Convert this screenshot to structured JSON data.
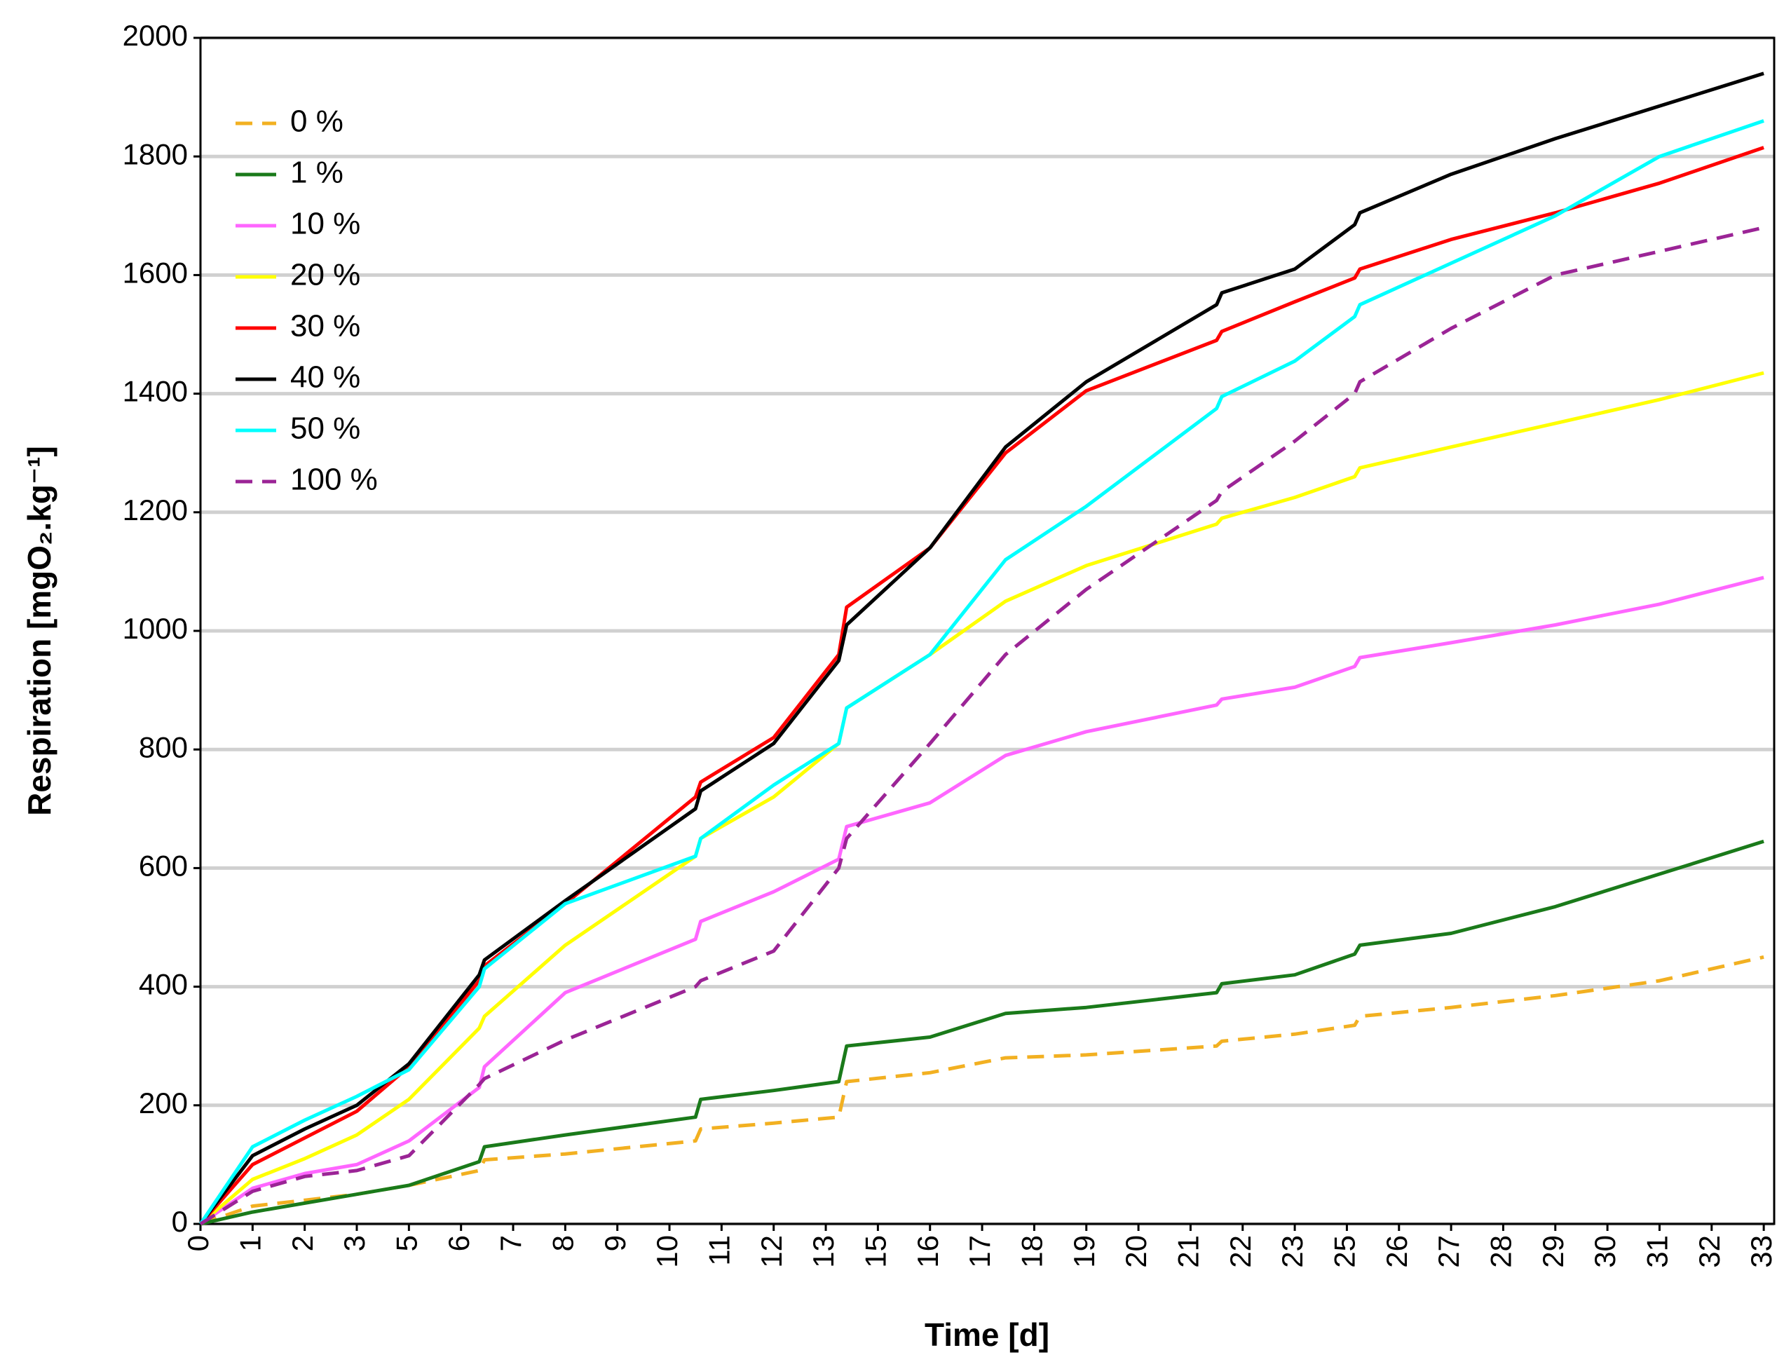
{
  "chart_data": {
    "type": "line",
    "xlabel": "Time [d]",
    "ylabel": "Respiration [mgO₂.kg⁻¹]",
    "x": [
      0,
      1,
      2,
      3,
      4,
      5.35,
      5.45,
      7,
      9.5,
      9.6,
      11,
      12.25,
      12.4,
      14,
      15.45,
      17,
      19.5,
      19.6,
      21,
      22.15,
      22.25,
      24,
      26,
      28,
      30
    ],
    "series": [
      {
        "name": "0 %",
        "color": "#f2b021",
        "dash": true,
        "values": [
          0,
          30,
          40,
          50,
          65,
          90,
          108,
          118,
          140,
          160,
          170,
          180,
          240,
          255,
          280,
          285,
          300,
          308,
          320,
          335,
          350,
          365,
          385,
          410,
          450
        ]
      },
      {
        "name": "1 %",
        "color": "#1a7a1a",
        "dash": false,
        "values": [
          0,
          20,
          35,
          50,
          65,
          105,
          130,
          150,
          180,
          210,
          225,
          240,
          300,
          315,
          355,
          365,
          390,
          405,
          420,
          455,
          470,
          490,
          535,
          590,
          645
        ]
      },
      {
        "name": "10 %",
        "color": "#ff66ff",
        "dash": false,
        "values": [
          0,
          60,
          85,
          100,
          140,
          230,
          265,
          390,
          480,
          510,
          560,
          615,
          670,
          710,
          790,
          830,
          875,
          885,
          905,
          940,
          955,
          980,
          1010,
          1045,
          1090
        ]
      },
      {
        "name": "20 %",
        "color": "#ffff00",
        "dash": false,
        "values": [
          0,
          75,
          110,
          150,
          210,
          330,
          350,
          470,
          620,
          650,
          720,
          810,
          870,
          960,
          1050,
          1110,
          1180,
          1190,
          1225,
          1260,
          1275,
          1310,
          1350,
          1390,
          1435
        ]
      },
      {
        "name": "30 %",
        "color": "#ff0000",
        "dash": false,
        "values": [
          0,
          100,
          145,
          190,
          265,
          410,
          435,
          540,
          720,
          745,
          820,
          960,
          1040,
          1140,
          1300,
          1405,
          1490,
          1505,
          1555,
          1595,
          1610,
          1660,
          1705,
          1755,
          1815
        ]
      },
      {
        "name": "40 %",
        "color": "#000000",
        "dash": false,
        "values": [
          0,
          115,
          160,
          200,
          270,
          420,
          445,
          545,
          700,
          730,
          810,
          950,
          1010,
          1140,
          1310,
          1420,
          1550,
          1570,
          1610,
          1685,
          1705,
          1770,
          1830,
          1885,
          1940
        ]
      },
      {
        "name": "50 %",
        "color": "#00ffff",
        "dash": false,
        "values": [
          0,
          130,
          175,
          215,
          260,
          400,
          430,
          540,
          620,
          650,
          740,
          810,
          870,
          960,
          1120,
          1210,
          1375,
          1395,
          1455,
          1530,
          1550,
          1620,
          1700,
          1800,
          1860
        ]
      },
      {
        "name": "100 %",
        "color": "#9b2496",
        "dash": true,
        "values": [
          0,
          55,
          80,
          90,
          115,
          235,
          245,
          310,
          400,
          410,
          460,
          600,
          650,
          810,
          960,
          1070,
          1220,
          1235,
          1320,
          1400,
          1420,
          1510,
          1600,
          1640,
          1680
        ]
      }
    ],
    "xlim": [
      0,
      30.2
    ],
    "xticks": [
      0,
      1,
      2,
      3,
      {
        "value": 4,
        "label": "5"
      },
      {
        "value": 5,
        "label": "6"
      },
      {
        "value": 6,
        "label": "7"
      },
      {
        "value": 7,
        "label": "8"
      },
      {
        "value": 8,
        "label": "9"
      },
      {
        "value": 9,
        "label": "10"
      },
      {
        "value": 10,
        "label": "11"
      },
      {
        "value": 11,
        "label": "12"
      },
      {
        "value": 12,
        "label": "13"
      },
      {
        "value": 13,
        "label": "15"
      },
      {
        "value": 14,
        "label": "16"
      },
      {
        "value": 15,
        "label": "17"
      },
      {
        "value": 16,
        "label": "18"
      },
      {
        "value": 17,
        "label": "19"
      },
      {
        "value": 18,
        "label": "20"
      },
      {
        "value": 19,
        "label": "21"
      },
      {
        "value": 20,
        "label": "22"
      },
      {
        "value": 21,
        "label": "23"
      },
      {
        "value": 22,
        "label": "25"
      },
      {
        "value": 23,
        "label": "26"
      },
      {
        "value": 24,
        "label": "27"
      },
      {
        "value": 25,
        "label": "28"
      },
      {
        "value": 26,
        "label": "29"
      },
      {
        "value": 27,
        "label": "30"
      },
      {
        "value": 28,
        "label": "31"
      },
      {
        "value": 29,
        "label": "32"
      },
      {
        "value": 30,
        "label": "33"
      }
    ],
    "ylim": [
      0,
      2000
    ],
    "yticks": [
      0,
      200,
      400,
      600,
      800,
      1000,
      1200,
      1400,
      1600,
      1800,
      2000
    ],
    "grid": true,
    "legend": "upper-left"
  }
}
